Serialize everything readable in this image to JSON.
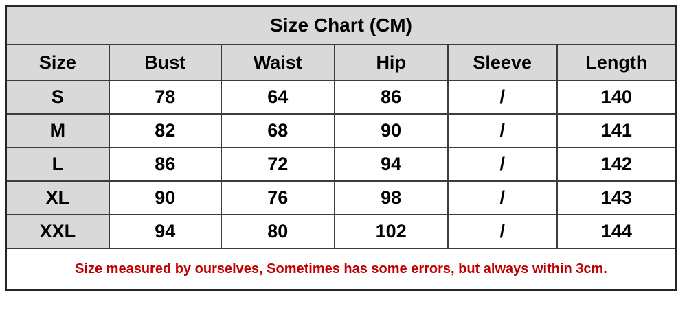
{
  "title": "Size Chart (CM)",
  "table": {
    "headers": [
      "Size",
      "Bust",
      "Waist",
      "Hip",
      "Sleeve",
      "Length"
    ],
    "rows": [
      [
        "S",
        "78",
        "64",
        "86",
        "/",
        "140"
      ],
      [
        "M",
        "82",
        "68",
        "90",
        "/",
        "141"
      ],
      [
        "L",
        "86",
        "72",
        "94",
        "/",
        "142"
      ],
      [
        "XL",
        "90",
        "76",
        "98",
        "/",
        "143"
      ],
      [
        "XXL",
        "94",
        "80",
        "102",
        "/",
        "144"
      ]
    ]
  },
  "note": "Size measured by ourselves, Sometimes has some errors, but always within 3cm.",
  "colors": {
    "header_bg": "#d9d9d9",
    "cell_bg": "#ffffff",
    "border": "#3c3c3c",
    "outer_border": "#262626",
    "text": "#000000",
    "note_text": "#c00000"
  },
  "layout": {
    "column_widths_pct": [
      15.4,
      16.7,
      16.9,
      16.9,
      16.3,
      17.8
    ]
  },
  "chart_data": {
    "type": "table",
    "title": "Size Chart (CM)",
    "unit": "CM",
    "columns": [
      "Size",
      "Bust",
      "Waist",
      "Hip",
      "Sleeve",
      "Length"
    ],
    "rows": [
      {
        "Size": "S",
        "Bust": 78,
        "Waist": 64,
        "Hip": 86,
        "Sleeve": "/",
        "Length": 140
      },
      {
        "Size": "M",
        "Bust": 82,
        "Waist": 68,
        "Hip": 90,
        "Sleeve": "/",
        "Length": 141
      },
      {
        "Size": "L",
        "Bust": 86,
        "Waist": 72,
        "Hip": 94,
        "Sleeve": "/",
        "Length": 142
      },
      {
        "Size": "XL",
        "Bust": 90,
        "Waist": 76,
        "Hip": 98,
        "Sleeve": "/",
        "Length": 143
      },
      {
        "Size": "XXL",
        "Bust": 94,
        "Waist": 80,
        "Hip": 102,
        "Sleeve": "/",
        "Length": 144
      }
    ],
    "footnote": "Size measured by ourselves, Sometimes has some errors, but always within 3cm."
  }
}
